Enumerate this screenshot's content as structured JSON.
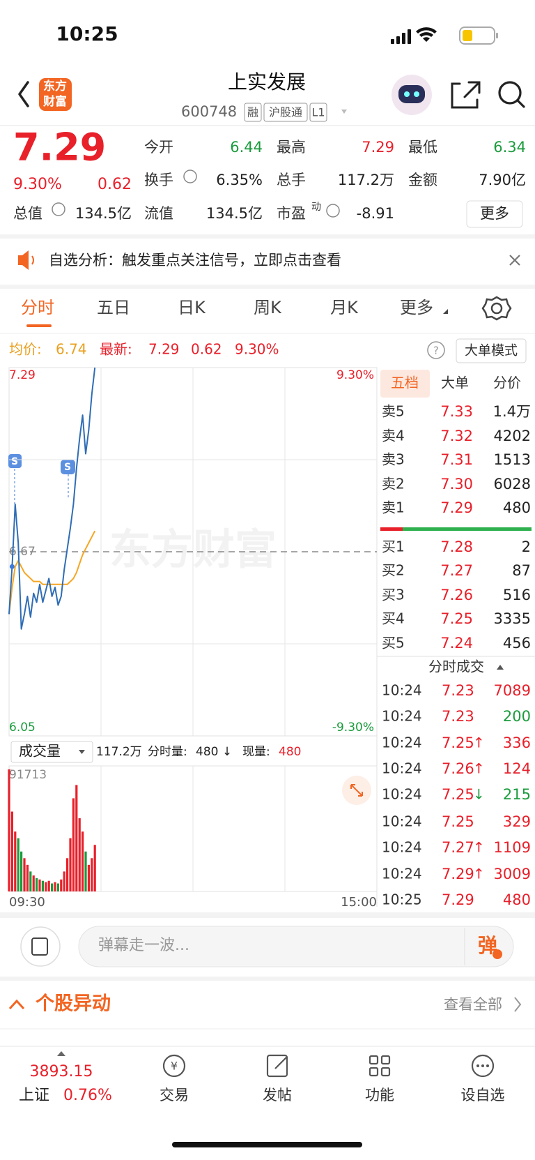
{
  "status_bar": {
    "time": "10:25"
  },
  "header": {
    "logo": [
      "东方",
      "财富"
    ],
    "title": "上实发展",
    "code": "600748",
    "tags": [
      "融",
      "沪股通",
      "L1"
    ]
  },
  "quote": {
    "price": "7.29",
    "change_pct": "9.30%",
    "change": "0.62",
    "stats": [
      {
        "label": "今开",
        "value": "6.44",
        "color": "#1a9b3c"
      },
      {
        "label": "最高",
        "value": "7.29",
        "color": "#e8202a"
      },
      {
        "label": "最低",
        "value": "6.34",
        "color": "#1a9b3c"
      },
      {
        "label": "换手",
        "value": "6.35%"
      },
      {
        "label": "总手",
        "value": "117.2万"
      },
      {
        "label": "金额",
        "value": "7.90亿"
      },
      {
        "label": "总值",
        "value": "134.5亿"
      },
      {
        "label": "流值",
        "value": "134.5亿"
      },
      {
        "label": "市盈",
        "sup": "动",
        "value": "-8.91"
      }
    ],
    "more": "更多"
  },
  "banner": {
    "text": "自选分析：触发重点关注信号，立即点击查看"
  },
  "tabs": [
    "分时",
    "五日",
    "日K",
    "周K",
    "月K",
    "更多"
  ],
  "info": {
    "avg_label": "均价:",
    "avg": "6.74",
    "latest_label": "最新:",
    "latest": "7.29",
    "change": "0.62",
    "pct": "9.30%",
    "mode": "大单模式"
  },
  "chart_data": {
    "type": "line",
    "watermark": "东方财富",
    "ylim": [
      6.05,
      7.29
    ],
    "yticks": [
      7.29,
      6.67,
      6.05
    ],
    "y2lim": [
      -9.3,
      9.3
    ],
    "y2ticks": [
      {
        "value": 9.3,
        "label": "9.30%"
      },
      {
        "value": -9.3,
        "label": "-9.30%"
      }
    ],
    "x_labels": [
      "09:30",
      "15:00"
    ],
    "series": [
      {
        "color": "#2f6db5",
        "values": [
          6.46,
          6.62,
          6.83,
          6.7,
          6.41,
          6.46,
          6.52,
          6.45,
          6.53,
          6.5,
          6.56,
          6.5,
          6.54,
          6.58,
          6.52,
          6.55,
          6.49,
          6.52,
          6.61,
          6.68,
          6.75,
          6.83,
          6.95,
          7.05,
          7.13,
          7.0,
          7.08,
          7.2,
          7.29
        ]
      },
      {
        "color": "#f5a623",
        "values": [
          6.46,
          6.55,
          6.62,
          6.64,
          6.62,
          6.6,
          6.59,
          6.58,
          6.57,
          6.57,
          6.57,
          6.56,
          6.56,
          6.56,
          6.56,
          6.56,
          6.56,
          6.56,
          6.56,
          6.56,
          6.57,
          6.58,
          6.6,
          6.63,
          6.66,
          6.68,
          6.7,
          6.72,
          6.74
        ]
      }
    ],
    "volume": {
      "header": {
        "label": "成交量",
        "total": "117.2万",
        "tick_label": "分时量:",
        "tick": "480 ↓",
        "now_label": "现量:",
        "now": "480"
      },
      "ylim": [
        0,
        91713
      ],
      "yticks": [
        91713
      ],
      "up_color": "#e8202a",
      "down_color": "#1a9b3c",
      "values": [
        91713,
        60000,
        45000,
        40000,
        30000,
        25000,
        20000,
        15000,
        12000,
        10000,
        9000,
        8000,
        7000,
        8000,
        6000,
        7000,
        6000,
        9000,
        15000,
        25000,
        40000,
        70000,
        80000,
        55000,
        45000,
        30000,
        20000,
        25000,
        35000
      ]
    }
  },
  "order_book": {
    "tabs": [
      "五档",
      "大单",
      "分价"
    ],
    "asks": [
      {
        "label": "卖5",
        "price": "7.33",
        "volume": "1.4万"
      },
      {
        "label": "卖4",
        "price": "7.32",
        "volume": "4202"
      },
      {
        "label": "卖3",
        "price": "7.31",
        "volume": "1513"
      },
      {
        "label": "卖2",
        "price": "7.30",
        "volume": "6028"
      },
      {
        "label": "卖1",
        "price": "7.29",
        "volume": "480"
      }
    ],
    "bids": [
      {
        "label": "买1",
        "price": "7.28",
        "volume": "2"
      },
      {
        "label": "买2",
        "price": "7.27",
        "volume": "87"
      },
      {
        "label": "买3",
        "price": "7.26",
        "volume": "516"
      },
      {
        "label": "买4",
        "price": "7.25",
        "volume": "3335"
      },
      {
        "label": "买5",
        "price": "7.24",
        "volume": "456"
      }
    ]
  },
  "trades": {
    "title": "分时成交",
    "rows": [
      {
        "time": "10:24",
        "price": "7.23",
        "volume": "7089",
        "volume_color": "#e8202a"
      },
      {
        "time": "10:24",
        "price": "7.23",
        "volume": "200",
        "volume_color": "#1a9b3c"
      },
      {
        "time": "10:24",
        "price": "7.25",
        "arrow": "↑",
        "arrow_color": "#e8202a",
        "volume": "336",
        "volume_color": "#e8202a"
      },
      {
        "time": "10:24",
        "price": "7.26",
        "arrow": "↑",
        "arrow_color": "#e8202a",
        "volume": "124",
        "volume_color": "#e8202a"
      },
      {
        "time": "10:24",
        "price": "7.25",
        "arrow": "↓",
        "arrow_color": "#1a9b3c",
        "volume": "215",
        "volume_color": "#1a9b3c"
      },
      {
        "time": "10:24",
        "price": "7.25",
        "volume": "329",
        "volume_color": "#e8202a"
      },
      {
        "time": "10:24",
        "price": "7.27",
        "arrow": "↑",
        "arrow_color": "#e8202a",
        "volume": "1109",
        "volume_color": "#e8202a"
      },
      {
        "time": "10:24",
        "price": "7.29",
        "arrow": "↑",
        "arrow_color": "#e8202a",
        "volume": "3009",
        "volume_color": "#e8202a"
      },
      {
        "time": "10:25",
        "price": "7.29",
        "volume": "480",
        "volume_color": "#e8202a"
      }
    ]
  },
  "comment": {
    "placeholder": "弹幕走一波...",
    "button": "弹"
  },
  "movers": {
    "title": "个股异动",
    "link": "查看全部"
  },
  "nav": {
    "index_value": "3893.15",
    "index_name": "上证",
    "index_pct": "0.76%",
    "items": [
      "交易",
      "发帖",
      "功能",
      "设自选"
    ]
  }
}
